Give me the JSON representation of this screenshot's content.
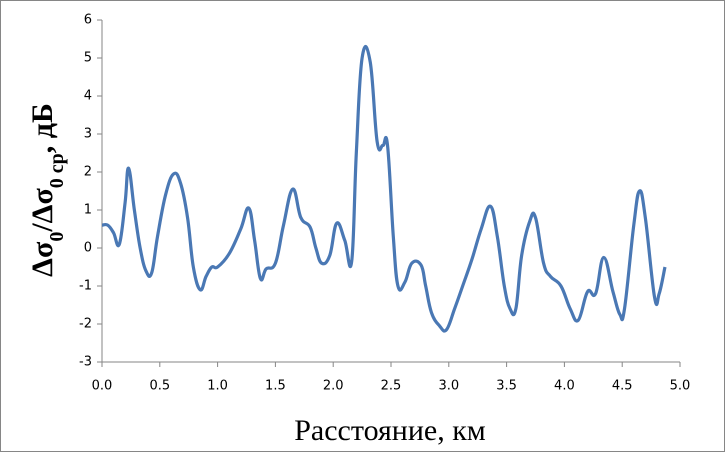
{
  "chart_data": {
    "type": "line",
    "xlabel": "Расстояние, км",
    "ylabel": [
      "Δσ",
      "0",
      "/Δσ",
      "0 ср",
      ",  дБ"
    ],
    "xlim": [
      0,
      5
    ],
    "ylim": [
      -3,
      6
    ],
    "xticks": [
      {
        "value": 0,
        "label": "0.0"
      },
      0.5,
      {
        "value": 1,
        "label": "1.0"
      },
      1.5,
      {
        "value": 2,
        "label": "2.0"
      },
      2.5,
      {
        "value": 3,
        "label": "3.0"
      },
      3.5,
      {
        "value": 4,
        "label": "4.0"
      },
      4.5,
      {
        "value": 5,
        "label": "5.0"
      }
    ],
    "yticks": [
      -3,
      -2,
      -1,
      0,
      1,
      2,
      3,
      4,
      5,
      6
    ],
    "grid": false,
    "series": [
      {
        "color": "#4a78b4",
        "x": [
          0,
          0.05,
          0.1,
          0.15,
          0.2,
          0.23,
          0.28,
          0.33,
          0.38,
          0.43,
          0.48,
          0.55,
          0.62,
          0.68,
          0.74,
          0.79,
          0.85,
          0.9,
          0.95,
          1.0,
          1.1,
          1.2,
          1.27,
          1.32,
          1.37,
          1.42,
          1.5,
          1.57,
          1.65,
          1.72,
          1.8,
          1.85,
          1.9,
          1.97,
          2.03,
          2.1,
          2.16,
          2.2,
          2.25,
          2.32,
          2.38,
          2.43,
          2.47,
          2.52,
          2.56,
          2.62,
          2.68,
          2.76,
          2.8,
          2.85,
          2.92,
          2.98,
          3.05,
          3.12,
          3.2,
          3.28,
          3.36,
          3.42,
          3.48,
          3.53,
          3.58,
          3.63,
          3.7,
          3.75,
          3.82,
          3.88,
          3.97,
          4.05,
          4.12,
          4.2,
          4.27,
          4.34,
          4.42,
          4.48,
          4.52,
          4.6,
          4.65,
          4.7,
          4.78,
          4.82,
          4.87
        ],
        "values": [
          0.6,
          0.6,
          0.4,
          0.1,
          1.2,
          2.1,
          1.0,
          0.0,
          -0.6,
          -0.65,
          0.3,
          1.4,
          1.95,
          1.7,
          0.8,
          -0.5,
          -1.1,
          -0.75,
          -0.5,
          -0.5,
          -0.15,
          0.5,
          1.05,
          0.2,
          -0.8,
          -0.55,
          -0.4,
          0.6,
          1.55,
          0.8,
          0.55,
          0.0,
          -0.4,
          -0.2,
          0.65,
          0.2,
          -0.35,
          2.5,
          5.0,
          4.9,
          2.8,
          2.7,
          2.7,
          0.3,
          -1.0,
          -0.9,
          -0.4,
          -0.45,
          -1.0,
          -1.7,
          -2.05,
          -2.15,
          -1.6,
          -1.0,
          -0.3,
          0.5,
          1.1,
          0.3,
          -1.0,
          -1.6,
          -1.6,
          -0.2,
          0.7,
          0.8,
          -0.4,
          -0.75,
          -1.0,
          -1.6,
          -1.9,
          -1.15,
          -1.2,
          -0.25,
          -1.15,
          -1.75,
          -1.6,
          0.6,
          1.5,
          0.8,
          -1.3,
          -1.2,
          -0.5
        ]
      }
    ]
  }
}
